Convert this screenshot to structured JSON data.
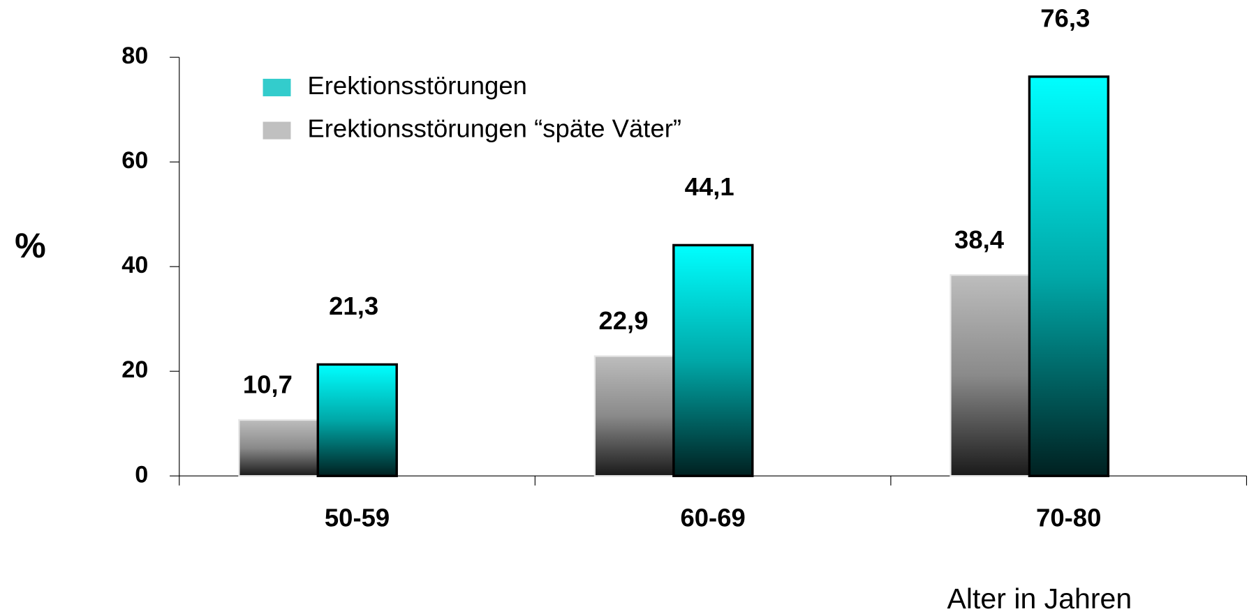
{
  "chart_data": {
    "type": "bar",
    "categories": [
      "50-59",
      "60-69",
      "70-80"
    ],
    "series": [
      {
        "name": "Erektionsstörungen",
        "color": "#33cccc",
        "values": [
          21.3,
          44.1,
          76.3
        ],
        "value_labels": [
          "21,3",
          "44,1",
          "76,3"
        ]
      },
      {
        "name": "Erektionsstörungen “späte Väter”",
        "color": "#c0c0c0",
        "values": [
          10.7,
          22.9,
          38.4
        ],
        "value_labels": [
          "10,7",
          "22,9",
          "38,4"
        ]
      }
    ],
    "y_label": "%",
    "x_label": "Alter in Jahren",
    "ylim": [
      0,
      80
    ],
    "yticks": [
      0,
      20,
      40,
      60,
      80
    ],
    "legend": "upper left",
    "grid": false
  }
}
